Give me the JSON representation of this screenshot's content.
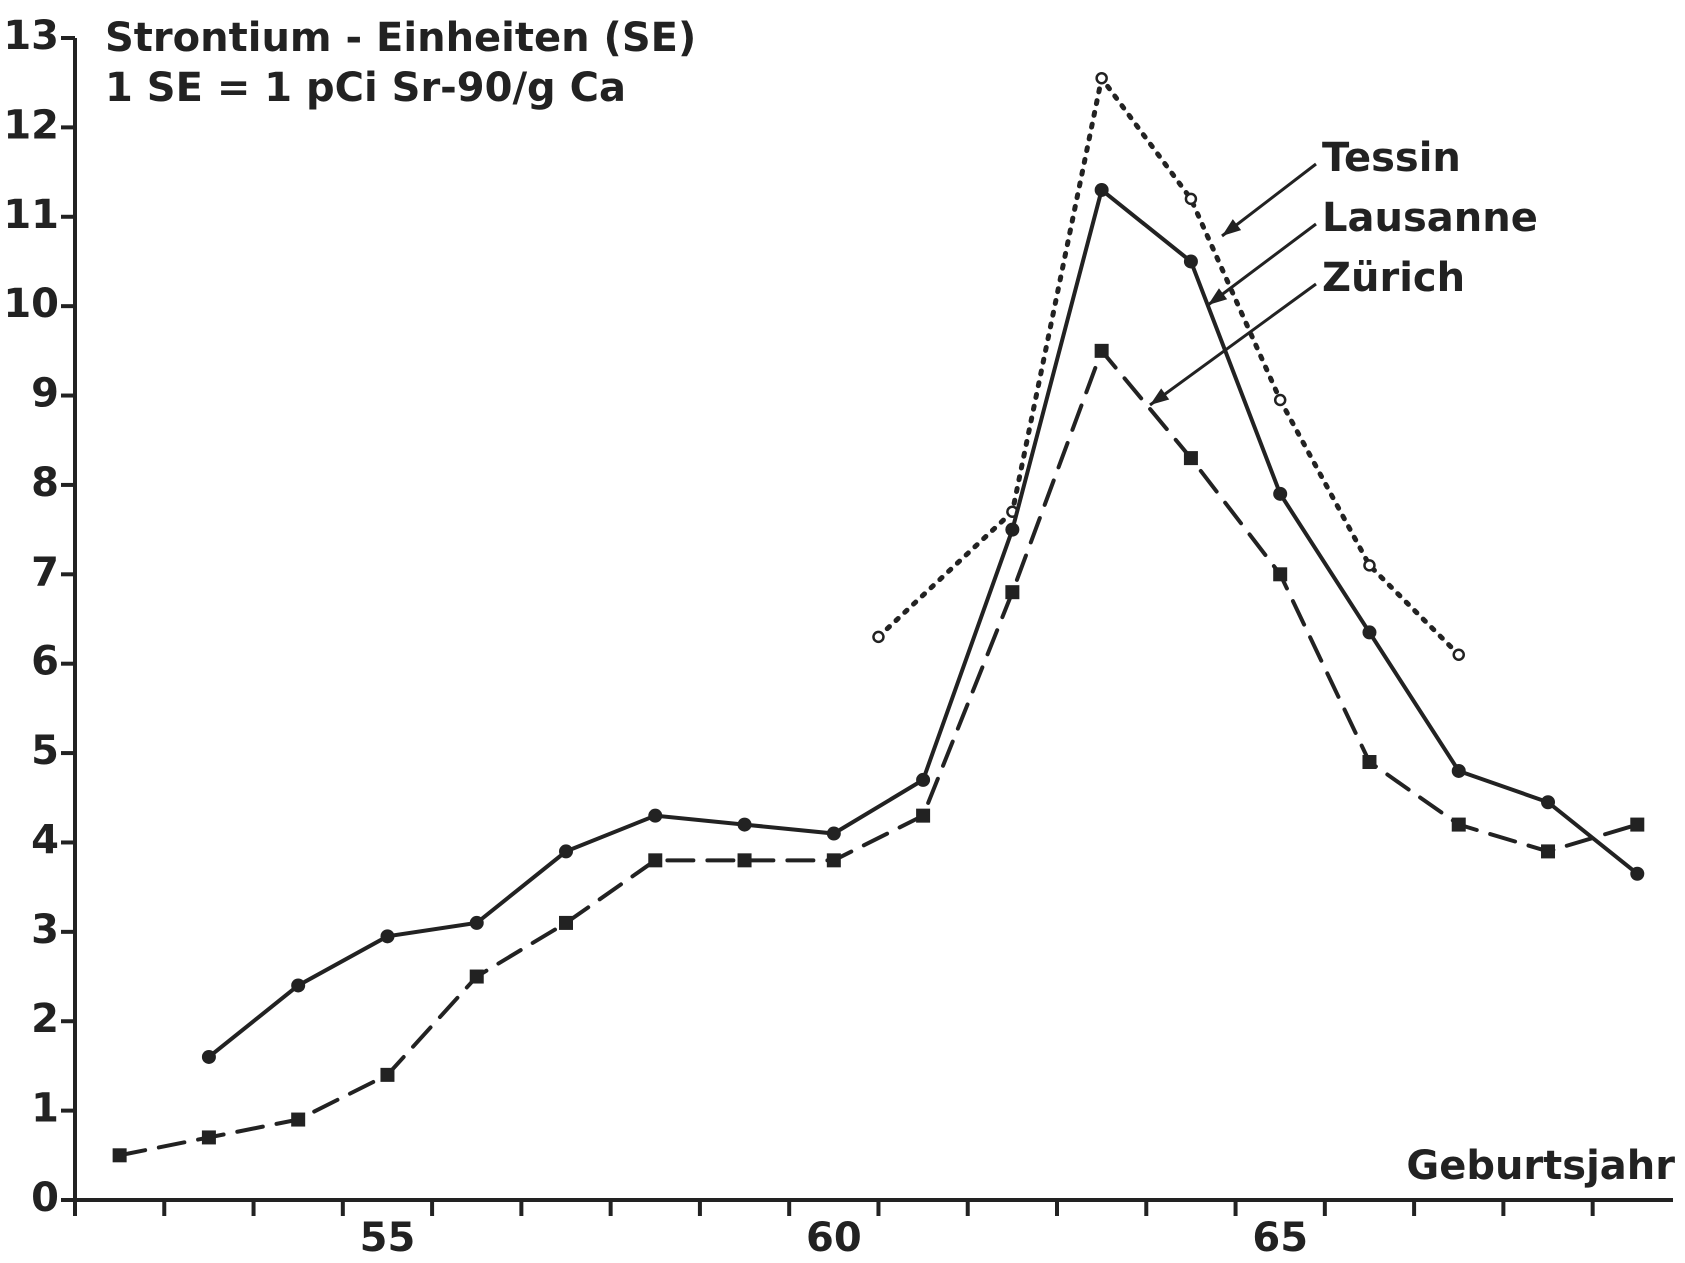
{
  "chart_data": {
    "type": "line",
    "title": "Strontium - Einheiten (SE)",
    "subtitle": "1 SE = 1 pCi  Sr-90/g Ca",
    "x_label": "Geburtsjahr",
    "xlim": [
      51.5,
      69.4
    ],
    "xticks": [
      55,
      60,
      65
    ],
    "xticks_minor": [
      51.5,
      52.5,
      53.5,
      54.5,
      55.5,
      56.5,
      57.5,
      58.5,
      59.5,
      60.5,
      61.5,
      62.5,
      63.5,
      64.5,
      65.5,
      66.5,
      67.5,
      68.5
    ],
    "ylim": [
      0,
      13
    ],
    "yticks": [
      0,
      1,
      2,
      3,
      4,
      5,
      6,
      7,
      8,
      9,
      10,
      11,
      12,
      13
    ],
    "series": [
      {
        "name": "Tessin",
        "color": "#222222",
        "style": "dotted",
        "marker": "open-circle",
        "x": [
          60.5,
          62,
          63,
          64,
          65,
          66,
          67
        ],
        "values": [
          6.3,
          7.7,
          12.55,
          11.2,
          8.95,
          7.1,
          6.1
        ]
      },
      {
        "name": "Lausanne",
        "color": "#222222",
        "style": "solid",
        "marker": "circle",
        "x": [
          53,
          54,
          55,
          56,
          57,
          58,
          59,
          60,
          61,
          62,
          63,
          64,
          65,
          66,
          67,
          68,
          69
        ],
        "values": [
          1.6,
          2.4,
          2.95,
          3.1,
          3.9,
          4.3,
          4.2,
          4.1,
          4.7,
          7.5,
          11.3,
          10.5,
          7.9,
          6.35,
          4.8,
          4.45,
          3.65
        ]
      },
      {
        "name": "Zürich",
        "color": "#222222",
        "style": "dashed",
        "marker": "square",
        "x": [
          52,
          53,
          54,
          55,
          56,
          57,
          58,
          59,
          60,
          61,
          62,
          63,
          64,
          65,
          66,
          67,
          68,
          69
        ],
        "values": [
          0.5,
          0.7,
          0.9,
          1.4,
          2.5,
          3.1,
          3.8,
          3.8,
          3.8,
          4.3,
          6.8,
          9.5,
          8.3,
          7.0,
          4.9,
          4.2,
          3.9,
          4.2
        ]
      }
    ]
  }
}
